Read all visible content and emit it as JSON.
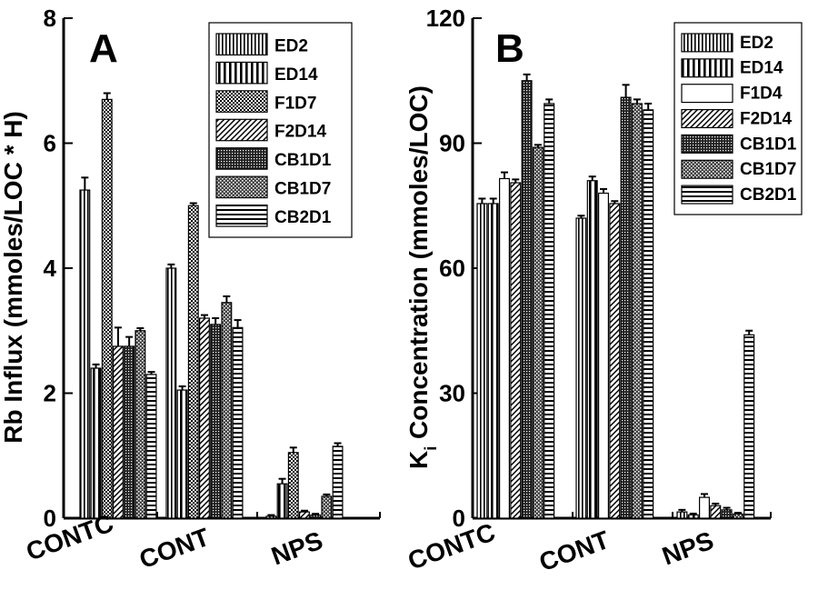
{
  "chart_data": [
    {
      "type": "bar",
      "panel_label": "A",
      "categories": [
        "CONTC",
        "CONT",
        "NPS"
      ],
      "ylabel": "Rb Influx (mmoles/LOC * H)",
      "xlabel": "",
      "ylim": [
        0,
        8
      ],
      "yticks": [
        0,
        2,
        4,
        6,
        8
      ],
      "grid": false,
      "legend_position": "top-right",
      "series": [
        {
          "name": "ED2",
          "pattern": "vert-fine",
          "values": [
            5.25,
            4.0,
            0.03
          ],
          "errors": [
            0.2,
            0.06,
            0.02
          ]
        },
        {
          "name": "ED14",
          "pattern": "vert-coarse",
          "values": [
            2.4,
            2.05,
            0.55
          ],
          "errors": [
            0.06,
            0.06,
            0.08
          ]
        },
        {
          "name": "F1D7",
          "pattern": "dots",
          "values": [
            6.7,
            5.0,
            1.05
          ],
          "errors": [
            0.1,
            0.04,
            0.08
          ]
        },
        {
          "name": "F2D14",
          "pattern": "diag",
          "values": [
            2.75,
            3.2,
            0.1
          ],
          "errors": [
            0.3,
            0.05,
            0.02
          ]
        },
        {
          "name": "CB1D1",
          "pattern": "dense-dots",
          "values": [
            2.75,
            3.1,
            0.05
          ],
          "errors": [
            0.15,
            0.1,
            0.02
          ]
        },
        {
          "name": "CB1D7",
          "pattern": "checker",
          "values": [
            3.0,
            3.45,
            0.35
          ],
          "errors": [
            0.04,
            0.1,
            0.03
          ]
        },
        {
          "name": "CB2D1",
          "pattern": "horiz",
          "values": [
            2.3,
            3.05,
            1.15
          ],
          "errors": [
            0.04,
            0.12,
            0.05
          ]
        }
      ]
    },
    {
      "type": "bar",
      "panel_label": "B",
      "categories": [
        "CONTC",
        "CONT",
        "NPS"
      ],
      "ylabel": "K",
      "ylabel_sub": "i",
      "ylabel_rest": " Concentration (mmoles/LOC)",
      "xlabel": "",
      "ylim": [
        0,
        120
      ],
      "yticks": [
        0,
        30,
        60,
        90,
        120
      ],
      "grid": false,
      "legend_position": "top-right",
      "series": [
        {
          "name": "ED2",
          "pattern": "vert-fine",
          "values": [
            75.5,
            72.0,
            1.5
          ],
          "errors": [
            1.2,
            0.6,
            0.5
          ]
        },
        {
          "name": "ED14",
          "pattern": "vert-coarse",
          "values": [
            75.5,
            81.0,
            0.8
          ],
          "errors": [
            1.2,
            1.0,
            0.3
          ]
        },
        {
          "name": "F1D4",
          "pattern": "blank",
          "values": [
            81.5,
            78.0,
            5.0
          ],
          "errors": [
            1.5,
            1.0,
            0.8
          ]
        },
        {
          "name": "F2D14",
          "pattern": "diag",
          "values": [
            80.5,
            75.5,
            3.0
          ],
          "errors": [
            0.8,
            0.6,
            0.5
          ]
        },
        {
          "name": "CB1D1",
          "pattern": "dense-dots",
          "values": [
            105.0,
            101.0,
            2.0
          ],
          "errors": [
            1.5,
            3.0,
            0.5
          ]
        },
        {
          "name": "CB1D7",
          "pattern": "checker",
          "values": [
            89.0,
            99.5,
            1.0
          ],
          "errors": [
            0.6,
            1.0,
            0.3
          ]
        },
        {
          "name": "CB2D1",
          "pattern": "horiz",
          "values": [
            99.5,
            98.0,
            44.0
          ],
          "errors": [
            1.0,
            1.5,
            1.0
          ]
        }
      ]
    }
  ]
}
